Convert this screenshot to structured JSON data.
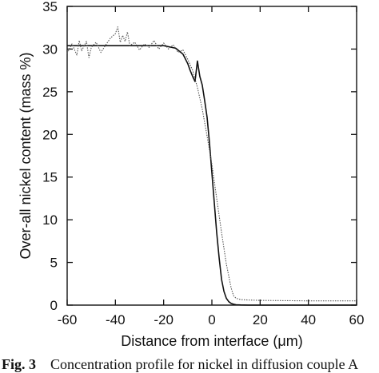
{
  "caption": {
    "label": "Fig. 3",
    "text": "Concentration profile for nickel in diffusion couple A"
  },
  "chart_data": {
    "type": "line",
    "title": "",
    "xlabel": "Distance from interface (μm)",
    "ylabel": "Over-all nickel content (mass %)",
    "xlim": [
      -60,
      60
    ],
    "ylim": [
      0,
      35
    ],
    "xticks": [
      -60,
      -40,
      -20,
      0,
      20,
      40,
      60
    ],
    "yticks": [
      0,
      5,
      10,
      15,
      20,
      25,
      30,
      35
    ],
    "grid": false,
    "legend": "none",
    "series": [
      {
        "style": "solid",
        "x": [
          -60,
          -40,
          -20,
          -15,
          -12,
          -10,
          -9,
          -8,
          -7,
          -6,
          -5,
          -4,
          -3,
          -2,
          -1,
          0,
          1,
          2,
          3,
          4,
          5,
          6,
          7,
          8,
          9,
          10,
          12,
          15,
          20,
          40,
          60
        ],
        "y": [
          30.4,
          30.4,
          30.4,
          30.1,
          29.4,
          28.3,
          27.5,
          26.8,
          26.2,
          28.6,
          26.8,
          25.8,
          24.0,
          22.0,
          19.0,
          15.5,
          12.0,
          8.5,
          5.5,
          3.0,
          1.6,
          0.8,
          0.4,
          0.2,
          0.1,
          0.05,
          0.02,
          0.0,
          0.0,
          0.0,
          0.0
        ]
      },
      {
        "style": "dotted",
        "x": [
          -60,
          -58,
          -56,
          -55,
          -54,
          -52,
          -51,
          -50,
          -48,
          -46,
          -44,
          -42,
          -40,
          -39,
          -38,
          -37,
          -36,
          -35,
          -34,
          -32,
          -30,
          -28,
          -26,
          -24,
          -22,
          -20,
          -18,
          -16,
          -14,
          -12,
          -10,
          -8,
          -6,
          -4,
          -2,
          0,
          2,
          4,
          6,
          8,
          9,
          10,
          12,
          15,
          20,
          40,
          60
        ],
        "y": [
          29.5,
          30.6,
          29.3,
          31.0,
          29.8,
          30.9,
          29.0,
          30.2,
          30.8,
          29.6,
          30.5,
          31.3,
          31.8,
          32.6,
          30.8,
          31.6,
          30.9,
          32.0,
          30.4,
          30.8,
          29.9,
          30.6,
          30.2,
          31.0,
          30.0,
          30.7,
          30.0,
          30.5,
          29.6,
          29.9,
          28.8,
          27.5,
          25.5,
          23.0,
          19.8,
          16.5,
          12.5,
          8.5,
          4.8,
          2.0,
          1.1,
          0.8,
          0.65,
          0.6,
          0.55,
          0.5,
          0.5
        ]
      }
    ]
  }
}
